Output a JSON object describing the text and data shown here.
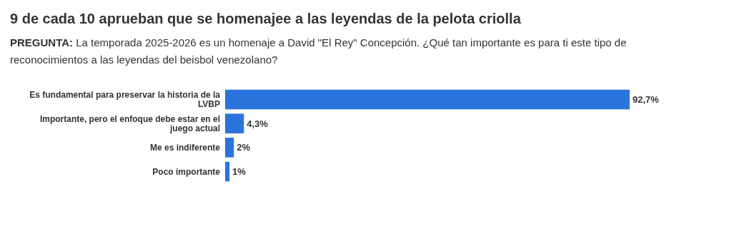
{
  "chart_data": {
    "type": "bar",
    "orientation": "horizontal",
    "title": "9 de cada 10 aprueban que se homenajee a las leyendas de la pelota criolla",
    "subtitle": "PREGUNTA: La temporada 2025-2026 es un homenaje a David \"El Rey\" Concepción. ¿Qué tan importante es para ti este tipo de reconocimientos a las leyendas del beisbol venezolano?",
    "categories": [
      "Es fundamental para preservar la historia de la LVBP",
      "Importante, pero el enfoque debe estar en el juego actual",
      "Me es indiferente",
      "Poco importante"
    ],
    "values": [
      92.7,
      4.3,
      2,
      1
    ],
    "value_labels": [
      "92,7%",
      "4,3%",
      "2%",
      "1%"
    ],
    "color": "#2b74dd"
  }
}
